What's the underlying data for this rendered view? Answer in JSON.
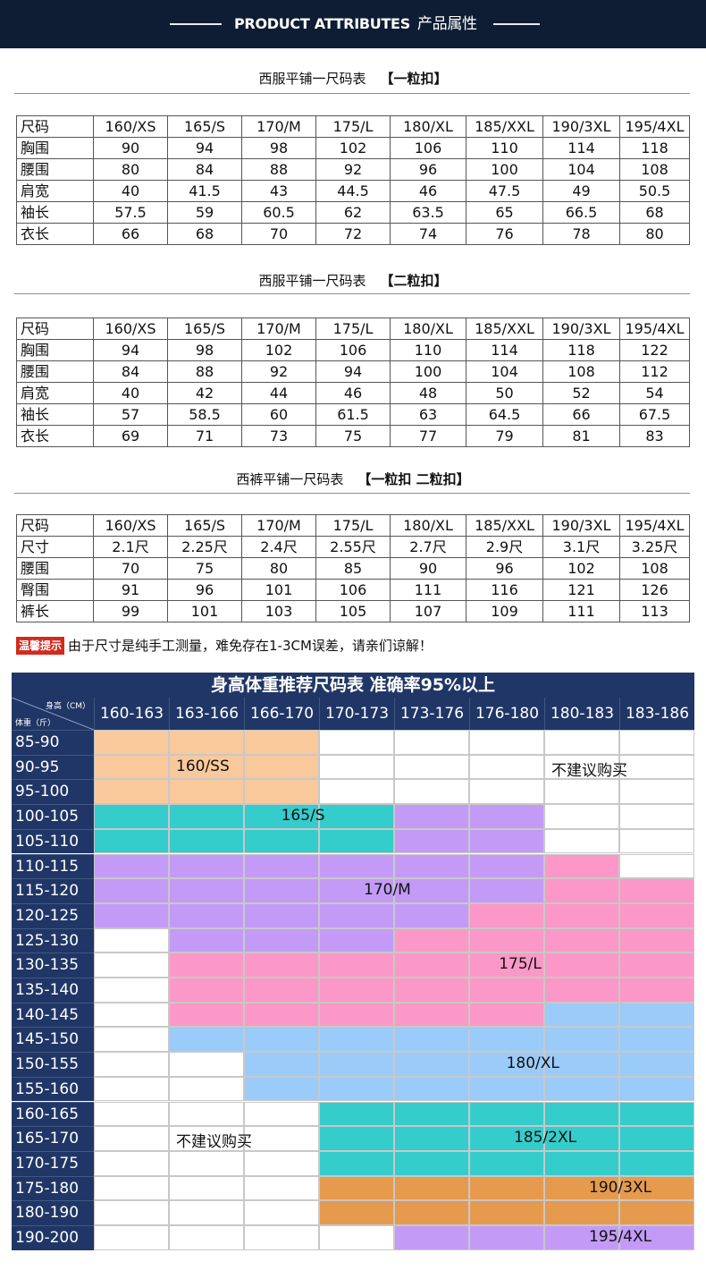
{
  "header": {
    "title_en": "PRODUCT ATTRIBUTES",
    "title_cn": "产品属性"
  },
  "tables": [
    {
      "caption": "西服平铺一尺码表",
      "subcaption": "【一粒扣】",
      "columns": [
        "尺码",
        "160/XS",
        "165/S",
        "170/M",
        "175/L",
        "180/XL",
        "185/XXL",
        "190/3XL",
        "195/4XL"
      ],
      "rows": [
        [
          "胸围",
          "90",
          "94",
          "98",
          "102",
          "106",
          "110",
          "114",
          "118"
        ],
        [
          "腰围",
          "80",
          "84",
          "88",
          "92",
          "96",
          "100",
          "104",
          "108"
        ],
        [
          "肩宽",
          "40",
          "41.5",
          "43",
          "44.5",
          "46",
          "47.5",
          "49",
          "50.5"
        ],
        [
          "袖长",
          "57.5",
          "59",
          "60.5",
          "62",
          "63.5",
          "65",
          "66.5",
          "68"
        ],
        [
          "衣长",
          "66",
          "68",
          "70",
          "72",
          "74",
          "76",
          "78",
          "80"
        ]
      ]
    },
    {
      "caption": "西服平铺一尺码表",
      "subcaption": "【二粒扣】",
      "columns": [
        "尺码",
        "160/XS",
        "165/S",
        "170/M",
        "175/L",
        "180/XL",
        "185/XXL",
        "190/3XL",
        "195/4XL"
      ],
      "rows": [
        [
          "胸围",
          "94",
          "98",
          "102",
          "106",
          "110",
          "114",
          "118",
          "122"
        ],
        [
          "腰围",
          "84",
          "88",
          "92",
          "94",
          "100",
          "104",
          "108",
          "112"
        ],
        [
          "肩宽",
          "40",
          "42",
          "44",
          "46",
          "48",
          "50",
          "52",
          "54"
        ],
        [
          "袖长",
          "57",
          "58.5",
          "60",
          "61.5",
          "63",
          "64.5",
          "66",
          "67.5"
        ],
        [
          "衣长",
          "69",
          "71",
          "73",
          "75",
          "77",
          "79",
          "81",
          "83"
        ]
      ]
    },
    {
      "caption": "西裤平铺一尺码表",
      "subcaption": "【一粒扣 二粒扣】",
      "columns": [
        "尺码",
        "160/XS",
        "165/S",
        "170/M",
        "175/L",
        "180/XL",
        "185/XXL",
        "190/3XL",
        "195/4XL"
      ],
      "rows": [
        [
          "尺寸",
          "2.1尺",
          "2.25尺",
          "2.4尺",
          "2.55尺",
          "2.7尺",
          "2.9尺",
          "3.1尺",
          "3.25尺"
        ],
        [
          "腰围",
          "70",
          "75",
          "80",
          "85",
          "90",
          "96",
          "102",
          "108"
        ],
        [
          "臀围",
          "91",
          "96",
          "101",
          "106",
          "111",
          "116",
          "121",
          "126"
        ],
        [
          "裤长",
          "99",
          "101",
          "103",
          "105",
          "107",
          "109",
          "111",
          "113"
        ]
      ]
    }
  ],
  "note": {
    "tag": "温馨提示",
    "text": "由于尺寸是纯手工测量，难免存在1-3CM误差，请亲们谅解！"
  },
  "recommendation": {
    "title": "身高体重推荐尺码表 准确率95%以上",
    "height_axis_label": "身高（CM）",
    "weight_axis_label": "体重（斤）",
    "heights": [
      "160-163",
      "163-166",
      "166-170",
      "170-173",
      "173-176",
      "176-180",
      "180-183",
      "183-186"
    ],
    "weights": [
      "85-90",
      "90-95",
      "95-100",
      "100-105",
      "105-110",
      "110-115",
      "115-120",
      "120-125",
      "125-130",
      "130-135",
      "135-140",
      "140-145",
      "145-150",
      "150-155",
      "155-160",
      "160-165",
      "165-170",
      "170-175",
      "175-180",
      "180-190",
      "190-200"
    ],
    "size_colors": {
      "160/SS": "#f9c99b",
      "165/S": "#35cccc",
      "170/M": "#c39bf7",
      "175/L": "#fb98c7",
      "180/XL": "#9bcbf9",
      "185/2XL": "#35cccc",
      "190/3XL": "#e59a4e",
      "195/4XL": "#c39bf7",
      "none": "#ffffff"
    },
    "grid": [
      [
        "160/SS",
        "160/SS",
        "160/SS",
        "none",
        "none",
        "none",
        "none",
        "none"
      ],
      [
        "160/SS",
        "160/SS",
        "160/SS",
        "none",
        "none",
        "none",
        "none",
        "none"
      ],
      [
        "160/SS",
        "160/SS",
        "160/SS",
        "none",
        "none",
        "none",
        "none",
        "none"
      ],
      [
        "165/S",
        "165/S",
        "165/S",
        "165/S",
        "170/M",
        "170/M",
        "none",
        "none"
      ],
      [
        "165/S",
        "165/S",
        "165/S",
        "165/S",
        "170/M",
        "170/M",
        "none",
        "none"
      ],
      [
        "170/M",
        "170/M",
        "170/M",
        "170/M",
        "170/M",
        "170/M",
        "175/L",
        "none"
      ],
      [
        "170/M",
        "170/M",
        "170/M",
        "170/M",
        "170/M",
        "170/M",
        "175/L",
        "175/L"
      ],
      [
        "170/M",
        "170/M",
        "170/M",
        "170/M",
        "170/M",
        "175/L",
        "175/L",
        "175/L"
      ],
      [
        "none",
        "170/M",
        "170/M",
        "170/M",
        "175/L",
        "175/L",
        "175/L",
        "175/L"
      ],
      [
        "none",
        "175/L",
        "175/L",
        "175/L",
        "175/L",
        "175/L",
        "175/L",
        "175/L"
      ],
      [
        "none",
        "175/L",
        "175/L",
        "175/L",
        "175/L",
        "175/L",
        "175/L",
        "175/L"
      ],
      [
        "none",
        "175/L",
        "175/L",
        "175/L",
        "175/L",
        "175/L",
        "180/XL",
        "180/XL"
      ],
      [
        "none",
        "180/XL",
        "180/XL",
        "180/XL",
        "180/XL",
        "180/XL",
        "180/XL",
        "180/XL"
      ],
      [
        "none",
        "none",
        "180/XL",
        "180/XL",
        "180/XL",
        "180/XL",
        "180/XL",
        "180/XL"
      ],
      [
        "none",
        "none",
        "180/XL",
        "180/XL",
        "180/XL",
        "180/XL",
        "180/XL",
        "180/XL"
      ],
      [
        "none",
        "none",
        "none",
        "185/2XL",
        "185/2XL",
        "185/2XL",
        "185/2XL",
        "185/2XL"
      ],
      [
        "none",
        "none",
        "none",
        "185/2XL",
        "185/2XL",
        "185/2XL",
        "185/2XL",
        "185/2XL"
      ],
      [
        "none",
        "none",
        "none",
        "185/2XL",
        "185/2XL",
        "185/2XL",
        "185/2XL",
        "185/2XL"
      ],
      [
        "none",
        "none",
        "none",
        "190/3XL",
        "190/3XL",
        "190/3XL",
        "190/3XL",
        "190/3XL"
      ],
      [
        "none",
        "none",
        "none",
        "190/3XL",
        "190/3XL",
        "190/3XL",
        "190/3XL",
        "190/3XL"
      ],
      [
        "none",
        "none",
        "none",
        "none",
        "195/4XL",
        "195/4XL",
        "195/4XL",
        "195/4XL"
      ]
    ],
    "labels": [
      {
        "text": "160/SS",
        "row": 1,
        "col": 1.0
      },
      {
        "text": "不建议购买",
        "row": 1,
        "col": 6.0
      },
      {
        "text": "165/S",
        "row": 3,
        "col": 2.4
      },
      {
        "text": "170/M",
        "row": 6,
        "col": 3.5
      },
      {
        "text": "175/L",
        "row": 9,
        "col": 5.3
      },
      {
        "text": "180/XL",
        "row": 13,
        "col": 5.4
      },
      {
        "text": "不建议购买",
        "row": 16,
        "col": 1.0
      },
      {
        "text": "185/2XL",
        "row": 16,
        "col": 5.5
      },
      {
        "text": "190/3XL",
        "row": 18,
        "col": 6.5
      },
      {
        "text": "195/4XL",
        "row": 20,
        "col": 6.5
      }
    ]
  }
}
